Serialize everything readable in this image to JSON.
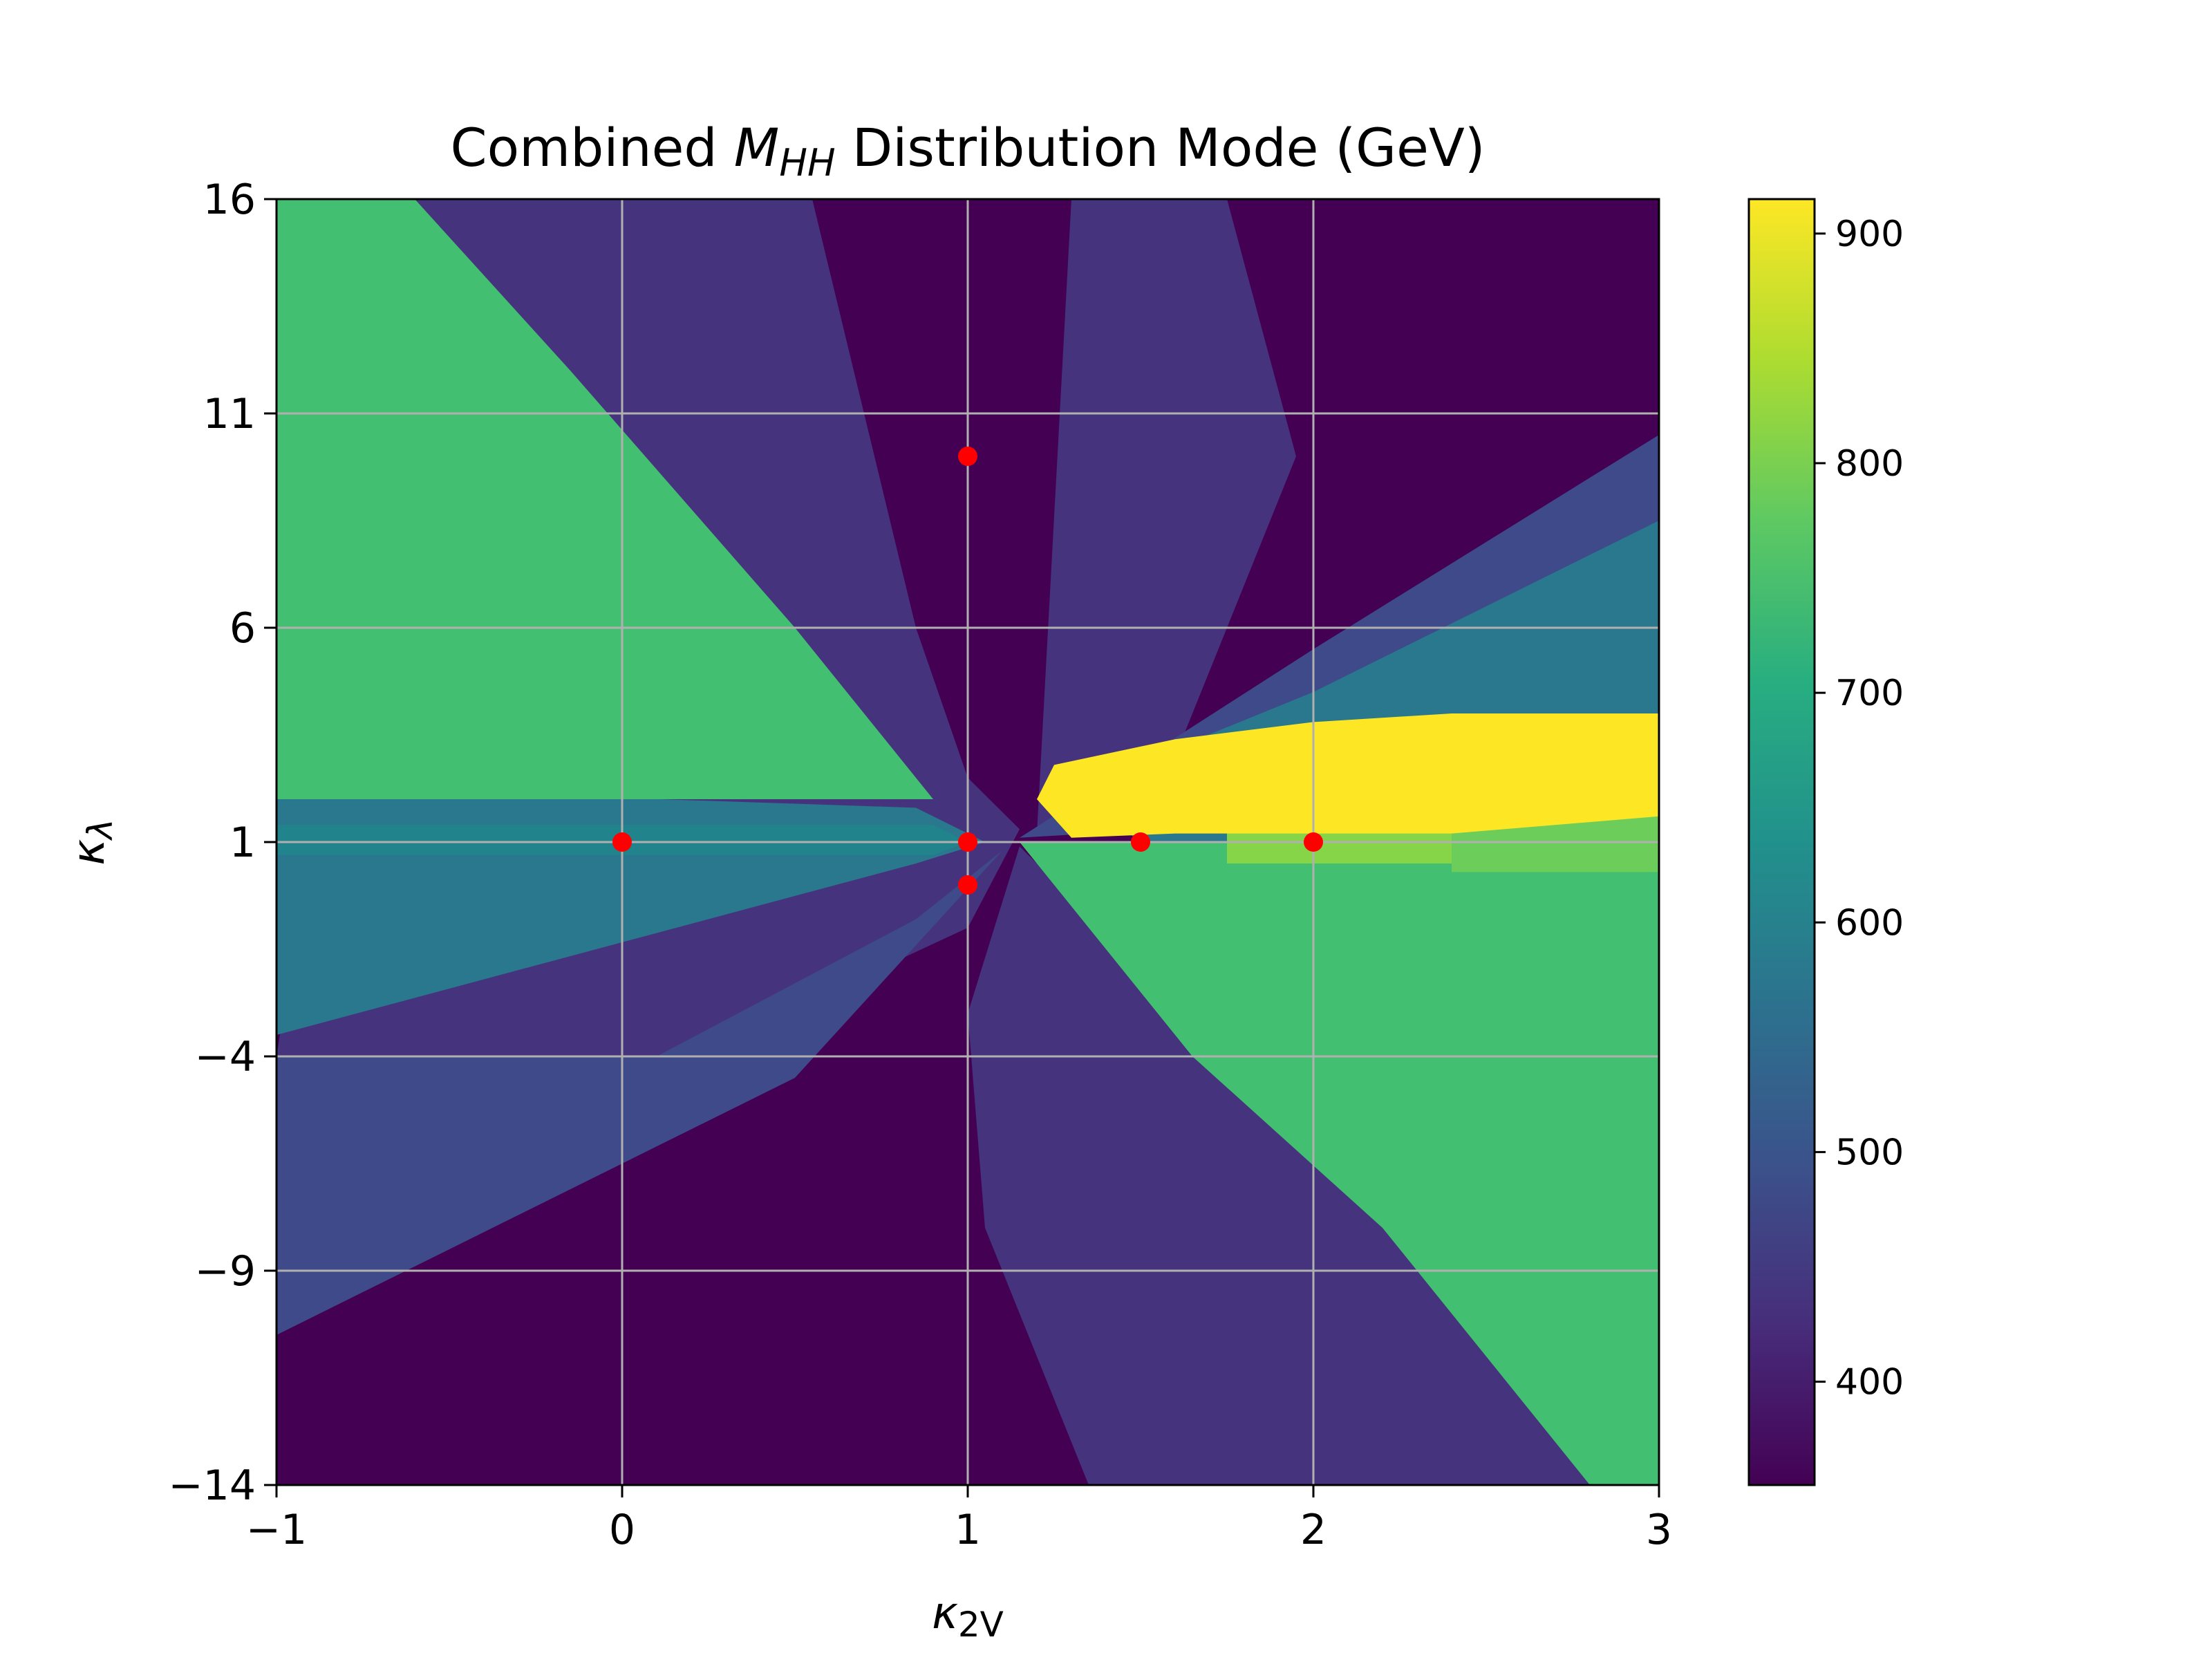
{
  "chart_data": {
    "type": "heatmap",
    "title": {
      "prefix": "Combined ",
      "symbol": "M",
      "subscript": "HH",
      "suffix": " Distribution Mode (GeV)"
    },
    "xlabel": {
      "symbol": "κ",
      "subscript": "2V"
    },
    "ylabel": {
      "symbol": "κ",
      "subscript": "λ"
    },
    "xlim": [
      -1,
      3
    ],
    "ylim": [
      -14,
      16
    ],
    "xticks": [
      -1,
      0,
      1,
      2,
      3
    ],
    "xtick_labels": [
      "−1",
      "0",
      "1",
      "2",
      "3"
    ],
    "yticks": [
      -14,
      -9,
      -4,
      1,
      6,
      11,
      16
    ],
    "ytick_labels": [
      "−14",
      "−9",
      "−4",
      "1",
      "6",
      "11",
      "16"
    ],
    "grid": true,
    "colormap": "viridis",
    "colorbar": {
      "range": [
        355,
        915
      ],
      "ticks": [
        400,
        500,
        600,
        700,
        800,
        900
      ],
      "tick_labels": [
        "400",
        "500",
        "600",
        "700",
        "800",
        "900"
      ]
    },
    "level_values_gev": {
      "L1": 360,
      "L2": 420,
      "L3": 480,
      "L4": 605,
      "L5": 630,
      "L6": 740,
      "L7": 790,
      "L8": 790,
      "L9": 915
    },
    "level_colors": {
      "L1": "#440154",
      "L2": "#46337e",
      "L3": "#3e4a89",
      "L4": "#2a788e",
      "L5": "#21838c",
      "L6": "#43bf71",
      "L7": "#6ccd5a",
      "L8": "#86d549",
      "L9": "#fde725"
    },
    "regions": [
      {
        "level": "L1",
        "points": [
          [
            -1,
            16
          ],
          [
            3,
            16
          ],
          [
            3,
            -14
          ],
          [
            -1,
            -14
          ]
        ]
      },
      {
        "level": "L2",
        "points": [
          [
            -0.6,
            16
          ],
          [
            0.55,
            16
          ],
          [
            0.85,
            6
          ],
          [
            1.0,
            2.5
          ],
          [
            1.15,
            1.3
          ],
          [
            1.0,
            -1
          ],
          [
            0.2,
            -4
          ],
          [
            -1,
            -4
          ]
        ]
      },
      {
        "level": "L2",
        "points": [
          [
            1.3,
            16
          ],
          [
            1.75,
            16
          ],
          [
            1.95,
            10
          ],
          [
            1.6,
            3
          ],
          [
            1.2,
            1.2
          ]
        ]
      },
      {
        "level": "L2",
        "points": [
          [
            1.15,
            0.9
          ],
          [
            1.0,
            -3
          ],
          [
            1.05,
            -8
          ],
          [
            1.35,
            -14
          ],
          [
            3,
            -14
          ],
          [
            3,
            -3
          ],
          [
            1.3,
            -0.3
          ]
        ]
      },
      {
        "level": "L3",
        "points": [
          [
            -1,
            -4
          ],
          [
            0.1,
            -4
          ],
          [
            0.85,
            -0.8
          ],
          [
            1.1,
            0.8
          ],
          [
            0.5,
            -4.5
          ],
          [
            -1,
            -10.5
          ]
        ]
      },
      {
        "level": "L3",
        "points": [
          [
            1.15,
            1.1
          ],
          [
            2.0,
            5.5
          ],
          [
            3,
            10.5
          ],
          [
            3,
            2.0
          ]
        ]
      },
      {
        "level": "L4",
        "points": [
          [
            -1,
            2.3
          ],
          [
            0.85,
            1.8
          ],
          [
            1.05,
            1.0
          ],
          [
            0.85,
            0.5
          ],
          [
            -1,
            -3.5
          ]
        ]
      },
      {
        "level": "L5",
        "points": [
          [
            -1,
            1.4
          ],
          [
            0.9,
            1.4
          ],
          [
            1.0,
            1.0
          ],
          [
            0.9,
            0.7
          ],
          [
            -1,
            0.7
          ]
        ]
      },
      {
        "level": "L4",
        "points": [
          [
            1.3,
            2.2
          ],
          [
            2.0,
            4.5
          ],
          [
            3,
            8.5
          ],
          [
            3,
            1.0
          ],
          [
            1.5,
            1.0
          ]
        ]
      },
      {
        "level": "L6",
        "points": [
          [
            -1,
            16
          ],
          [
            -0.6,
            16
          ],
          [
            -0.15,
            12
          ],
          [
            0.5,
            6
          ],
          [
            0.9,
            2.0
          ],
          [
            -1,
            2.0
          ]
        ]
      },
      {
        "level": "L6",
        "points": [
          [
            1.15,
            1.0
          ],
          [
            1.35,
            -1
          ],
          [
            1.65,
            -4
          ],
          [
            2.2,
            -8
          ],
          [
            2.8,
            -14
          ],
          [
            3,
            -14
          ],
          [
            3,
            1.0
          ]
        ]
      },
      {
        "level": "L8",
        "points": [
          [
            1.75,
            0.5
          ],
          [
            3,
            0.5
          ],
          [
            3,
            1.6
          ],
          [
            1.75,
            1.6
          ]
        ]
      },
      {
        "level": "L7",
        "points": [
          [
            2.4,
            0.3
          ],
          [
            3,
            0.3
          ],
          [
            3,
            1.6
          ],
          [
            2.4,
            1.6
          ]
        ]
      },
      {
        "level": "L9",
        "points": [
          [
            1.2,
            2.0
          ],
          [
            1.25,
            2.8
          ],
          [
            1.6,
            3.4
          ],
          [
            2.0,
            3.8
          ],
          [
            2.4,
            4.0
          ],
          [
            3,
            4.0
          ],
          [
            3,
            1.6
          ],
          [
            2.4,
            1.2
          ],
          [
            1.6,
            1.2
          ],
          [
            1.3,
            1.1
          ]
        ]
      }
    ],
    "markers": {
      "color": "#ff0000",
      "points": [
        {
          "x": 1,
          "y": 10
        },
        {
          "x": 0,
          "y": 1
        },
        {
          "x": 1,
          "y": 1
        },
        {
          "x": 1.5,
          "y": 1
        },
        {
          "x": 2,
          "y": 1
        },
        {
          "x": 1,
          "y": 0
        }
      ]
    }
  }
}
